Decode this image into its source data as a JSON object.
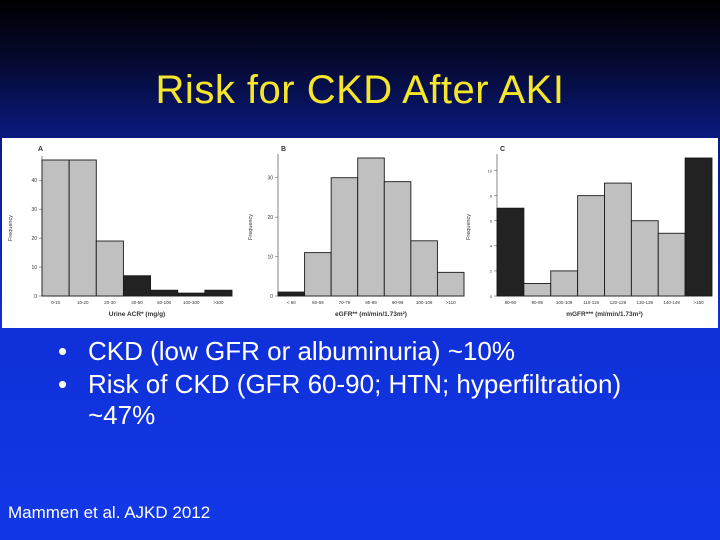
{
  "slide": {
    "title": "Risk for CKD After AKI",
    "bullets": [
      "CKD (low GFR or albuminuria) ~10%",
      "Risk of CKD (GFR 60-90; HTN; hyperfiltration) ~47%"
    ],
    "bullet_symbol": "•",
    "citation": "Mammen et al.  AJKD 2012"
  },
  "colors": {
    "title": "#f5e62c",
    "text": "#ffffff",
    "bar_highlight": "#222222",
    "bar_normal": "#c0c0c0"
  },
  "chart_data": [
    {
      "type": "bar",
      "panel_label": "A",
      "xlabel": "Urine ACR* (mg/g)",
      "ylabel": "Frequency",
      "categories": [
        "0-10",
        "10-20",
        "20-30",
        "30-50",
        "50-100",
        "100-300",
        ">300"
      ],
      "values": [
        47,
        47,
        19,
        7,
        2,
        1,
        2
      ],
      "highlight": [
        false,
        false,
        false,
        true,
        true,
        true,
        true
      ],
      "yticks": [
        0,
        10,
        20,
        30,
        40
      ],
      "ylim": [
        0,
        47
      ]
    },
    {
      "type": "bar",
      "panel_label": "B",
      "xlabel": "eGFR** (ml/min/1.73m²)",
      "ylabel": "Frequency",
      "categories": [
        "< 60",
        "60-69",
        "70-79",
        "80-89",
        "90-99",
        "100-109",
        ">110"
      ],
      "values": [
        1,
        11,
        30,
        35,
        29,
        14,
        6
      ],
      "highlight": [
        true,
        false,
        false,
        false,
        false,
        false,
        false
      ],
      "yticks": [
        0,
        10,
        20,
        30
      ],
      "ylim": [
        0,
        35
      ]
    },
    {
      "type": "bar",
      "panel_label": "C",
      "xlabel": "mGFR*** (ml/min/1.73m²)",
      "ylabel": "Frequency",
      "categories": [
        "80-90",
        "90-99",
        "100-109",
        "110-119",
        "120-129",
        "130-139",
        "140-149",
        ">150"
      ],
      "values": [
        7,
        1,
        2,
        8,
        9,
        6,
        5,
        11
      ],
      "highlight": [
        true,
        false,
        false,
        false,
        false,
        false,
        false,
        true
      ],
      "yticks": [
        0,
        2,
        4,
        6,
        8,
        10
      ],
      "ylim": [
        0,
        11
      ]
    }
  ]
}
